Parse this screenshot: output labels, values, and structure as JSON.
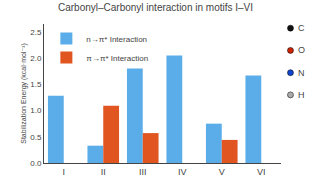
{
  "chart_data": {
    "type": "bar",
    "title": "Carbonyl–Carbonyl interaction in motifs I–VI",
    "y_label": "Stabilization Energy (kcal·mol⁻¹)",
    "categories": [
      "I",
      "II",
      "III",
      "IV",
      "V",
      "VI"
    ],
    "series": [
      {
        "name": "n→π* Interaction",
        "color": "#5aade8",
        "values": [
          1.28,
          0.33,
          1.8,
          2.05,
          0.75,
          1.67
        ]
      },
      {
        "name": "π→π* Interaction",
        "color": "#e05520",
        "values": [
          0.0,
          1.09,
          0.57,
          0.0,
          0.44,
          0.0
        ]
      }
    ],
    "ylim": [
      0,
      2.65
    ],
    "yticks": [
      {
        "value": 0,
        "label": "0.0"
      },
      0.5,
      {
        "value": 1,
        "label": "1.0"
      },
      1.5,
      {
        "value": 2,
        "label": "2.0"
      },
      2.5
    ],
    "grid": false,
    "legend": "upper left",
    "annotations": [
      {
        "text": "C",
        "color": "#111111"
      },
      {
        "text": "O",
        "color": "#cc2200"
      },
      {
        "text": "N",
        "color": "#1144cc"
      },
      {
        "text": "H",
        "color": "#aaaaaa"
      }
    ]
  }
}
